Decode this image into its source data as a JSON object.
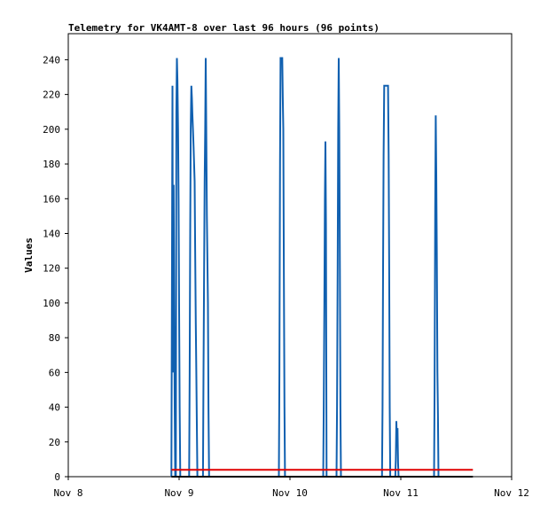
{
  "chart_data": {
    "type": "line",
    "title": "Telemetry for VK4AMT-8 over last 96 hours (96 points)",
    "xlabel": "",
    "ylabel": "Values",
    "x_unit": "days",
    "xlim": [
      0,
      4
    ],
    "ylim": [
      0,
      255
    ],
    "x_ticks": [
      {
        "value": 0,
        "label": "Nov 8"
      },
      {
        "value": 1,
        "label": "Nov 9"
      },
      {
        "value": 2,
        "label": "Nov 10"
      },
      {
        "value": 3,
        "label": "Nov 11"
      },
      {
        "value": 4,
        "label": "Nov 12"
      }
    ],
    "y_ticks": [
      0,
      20,
      40,
      60,
      80,
      100,
      120,
      140,
      160,
      180,
      200,
      220,
      240
    ],
    "grid": false,
    "series": [
      {
        "color": "#1060b0",
        "points": [
          [
            0.93,
            0
          ],
          [
            0.935,
            110
          ],
          [
            0.94,
            225
          ],
          [
            0.945,
            60
          ],
          [
            0.95,
            168
          ],
          [
            0.955,
            100
          ],
          [
            0.96,
            40
          ],
          [
            0.965,
            0
          ],
          [
            0.97,
            0
          ],
          [
            0.975,
            210
          ],
          [
            0.98,
            241
          ],
          [
            0.985,
            228
          ],
          [
            0.99,
            200
          ],
          [
            0.995,
            160
          ],
          [
            1.0,
            96
          ],
          [
            1.005,
            40
          ],
          [
            1.01,
            0
          ],
          [
            1.05,
            0
          ],
          [
            1.09,
            0
          ],
          [
            1.095,
            60
          ],
          [
            1.1,
            140
          ],
          [
            1.105,
            200
          ],
          [
            1.11,
            225
          ],
          [
            1.115,
            218
          ],
          [
            1.12,
            208
          ],
          [
            1.125,
            200
          ],
          [
            1.13,
            190
          ],
          [
            1.135,
            180
          ],
          [
            1.14,
            170
          ],
          [
            1.145,
            130
          ],
          [
            1.15,
            88
          ],
          [
            1.155,
            60
          ],
          [
            1.16,
            30
          ],
          [
            1.165,
            0
          ],
          [
            1.2,
            0
          ],
          [
            1.215,
            0
          ],
          [
            1.22,
            60
          ],
          [
            1.23,
            170
          ],
          [
            1.235,
            200
          ],
          [
            1.24,
            241
          ],
          [
            1.245,
            200
          ],
          [
            1.25,
            150
          ],
          [
            1.26,
            100
          ],
          [
            1.265,
            40
          ],
          [
            1.27,
            0
          ],
          [
            1.8,
            0
          ],
          [
            1.9,
            0
          ],
          [
            1.905,
            60
          ],
          [
            1.91,
            180
          ],
          [
            1.915,
            241
          ],
          [
            1.93,
            241
          ],
          [
            1.935,
            218
          ],
          [
            1.94,
            200
          ],
          [
            1.945,
            120
          ],
          [
            1.95,
            40
          ],
          [
            1.955,
            0
          ],
          [
            2.3,
            0
          ],
          [
            2.305,
            40
          ],
          [
            2.31,
            100
          ],
          [
            2.315,
            160
          ],
          [
            2.32,
            193
          ],
          [
            2.325,
            145
          ],
          [
            2.33,
            0
          ],
          [
            2.37,
            0
          ],
          [
            2.42,
            0
          ],
          [
            2.425,
            40
          ],
          [
            2.43,
            120
          ],
          [
            2.435,
            200
          ],
          [
            2.44,
            241
          ],
          [
            2.445,
            200
          ],
          [
            2.45,
            120
          ],
          [
            2.455,
            40
          ],
          [
            2.46,
            0
          ],
          [
            2.8,
            0
          ],
          [
            2.83,
            0
          ],
          [
            2.835,
            40
          ],
          [
            2.84,
            120
          ],
          [
            2.845,
            185
          ],
          [
            2.85,
            225
          ],
          [
            2.885,
            225
          ],
          [
            2.89,
            185
          ],
          [
            2.895,
            120
          ],
          [
            2.9,
            40
          ],
          [
            2.905,
            0
          ],
          [
            2.95,
            0
          ],
          [
            2.955,
            10
          ],
          [
            2.96,
            32
          ],
          [
            2.965,
            18
          ],
          [
            2.97,
            28
          ],
          [
            2.975,
            8
          ],
          [
            2.98,
            0
          ],
          [
            3.3,
            0
          ],
          [
            3.305,
            50
          ],
          [
            3.31,
            155
          ],
          [
            3.315,
            208
          ],
          [
            3.32,
            175
          ],
          [
            3.325,
            130
          ],
          [
            3.33,
            60
          ],
          [
            3.335,
            35
          ],
          [
            3.34,
            0
          ]
        ]
      },
      {
        "color": "#e00000",
        "points": [
          [
            0.93,
            4
          ],
          [
            3.65,
            4
          ]
        ]
      },
      {
        "color": "#000000",
        "points": [
          [
            0.93,
            0
          ],
          [
            3.65,
            0
          ]
        ]
      }
    ]
  }
}
